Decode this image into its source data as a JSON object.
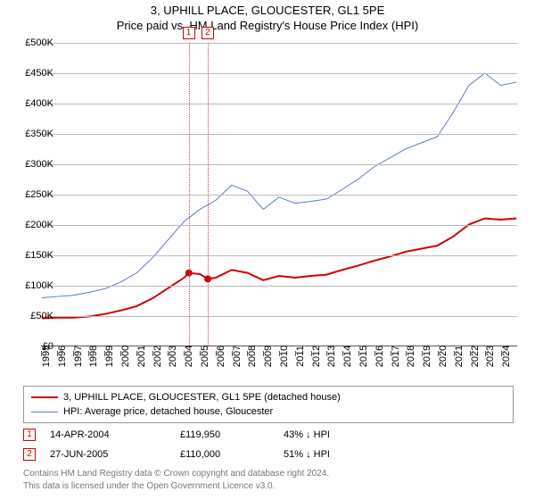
{
  "title_line1": "3, UPHILL PLACE, GLOUCESTER, GL1 5PE",
  "title_line2": "Price paid vs. HM Land Registry's House Price Index (HPI)",
  "chart": {
    "type": "line",
    "ylim": [
      0,
      500000
    ],
    "ytick_step": 50000,
    "ylabels": [
      "£0",
      "£50K",
      "£100K",
      "£150K",
      "£200K",
      "£250K",
      "£300K",
      "£350K",
      "£400K",
      "£450K",
      "£500K"
    ],
    "xlim": [
      1995,
      2025
    ],
    "xticks": [
      1995,
      1996,
      1997,
      1998,
      1999,
      2000,
      2001,
      2002,
      2003,
      2004,
      2005,
      2006,
      2007,
      2008,
      2009,
      2010,
      2011,
      2012,
      2013,
      2014,
      2015,
      2016,
      2017,
      2018,
      2019,
      2020,
      2021,
      2022,
      2023,
      2024
    ],
    "grid_color": "#bbbbbb",
    "axis_color": "#555555",
    "background_color": "#ffffff",
    "series": [
      {
        "name": "property",
        "color": "#d00000",
        "width": 2,
        "label": "3, UPHILL PLACE, GLOUCESTER, GL1 5PE (detached house)",
        "points": [
          [
            1995,
            45000
          ],
          [
            1996,
            46000
          ],
          [
            1997,
            46000
          ],
          [
            1998,
            48000
          ],
          [
            1999,
            52000
          ],
          [
            2000,
            58000
          ],
          [
            2001,
            65000
          ],
          [
            2002,
            78000
          ],
          [
            2003,
            95000
          ],
          [
            2004,
            112000
          ],
          [
            2004.3,
            119950
          ],
          [
            2005,
            118000
          ],
          [
            2005.5,
            110000
          ],
          [
            2006,
            112000
          ],
          [
            2007,
            125000
          ],
          [
            2008,
            120000
          ],
          [
            2009,
            108000
          ],
          [
            2010,
            115000
          ],
          [
            2011,
            112000
          ],
          [
            2012,
            115000
          ],
          [
            2013,
            117000
          ],
          [
            2014,
            125000
          ],
          [
            2015,
            132000
          ],
          [
            2016,
            140000
          ],
          [
            2017,
            147000
          ],
          [
            2018,
            155000
          ],
          [
            2019,
            160000
          ],
          [
            2020,
            165000
          ],
          [
            2021,
            180000
          ],
          [
            2022,
            200000
          ],
          [
            2023,
            210000
          ],
          [
            2024,
            208000
          ],
          [
            2025,
            210000
          ]
        ],
        "sale_markers": [
          {
            "x": 2004.3,
            "y": 119950
          },
          {
            "x": 2005.5,
            "y": 110000
          }
        ]
      },
      {
        "name": "hpi",
        "color": "#5b7cc4",
        "width": 1,
        "label": "HPI: Average price, detached house, Gloucester",
        "points": [
          [
            1995,
            79000
          ],
          [
            1996,
            81000
          ],
          [
            1997,
            83000
          ],
          [
            1998,
            88000
          ],
          [
            1999,
            94000
          ],
          [
            2000,
            105000
          ],
          [
            2001,
            120000
          ],
          [
            2002,
            145000
          ],
          [
            2003,
            175000
          ],
          [
            2004,
            205000
          ],
          [
            2005,
            225000
          ],
          [
            2006,
            240000
          ],
          [
            2007,
            265000
          ],
          [
            2008,
            255000
          ],
          [
            2009,
            225000
          ],
          [
            2010,
            245000
          ],
          [
            2011,
            235000
          ],
          [
            2012,
            238000
          ],
          [
            2013,
            242000
          ],
          [
            2014,
            258000
          ],
          [
            2015,
            275000
          ],
          [
            2016,
            295000
          ],
          [
            2017,
            310000
          ],
          [
            2018,
            325000
          ],
          [
            2019,
            335000
          ],
          [
            2020,
            345000
          ],
          [
            2021,
            385000
          ],
          [
            2022,
            430000
          ],
          [
            2023,
            450000
          ],
          [
            2024,
            430000
          ],
          [
            2025,
            435000
          ]
        ]
      }
    ],
    "vertical_markers": [
      {
        "num": "1",
        "x": 2004.3
      },
      {
        "num": "2",
        "x": 2005.5
      }
    ]
  },
  "legend": {
    "items": [
      {
        "color": "#d00000",
        "width": 2,
        "label": "3, UPHILL PLACE, GLOUCESTER, GL1 5PE (detached house)"
      },
      {
        "color": "#5b7cc4",
        "width": 1,
        "label": "HPI: Average price, detached house, Gloucester"
      }
    ]
  },
  "sales": [
    {
      "num": "1",
      "date": "14-APR-2004",
      "price": "£119,950",
      "hpi": "43% ↓ HPI"
    },
    {
      "num": "2",
      "date": "27-JUN-2005",
      "price": "£110,000",
      "hpi": "51% ↓ HPI"
    }
  ],
  "footnote_line1": "Contains HM Land Registry data © Crown copyright and database right 2024.",
  "footnote_line2": "This data is licensed under the Open Government Licence v3.0."
}
